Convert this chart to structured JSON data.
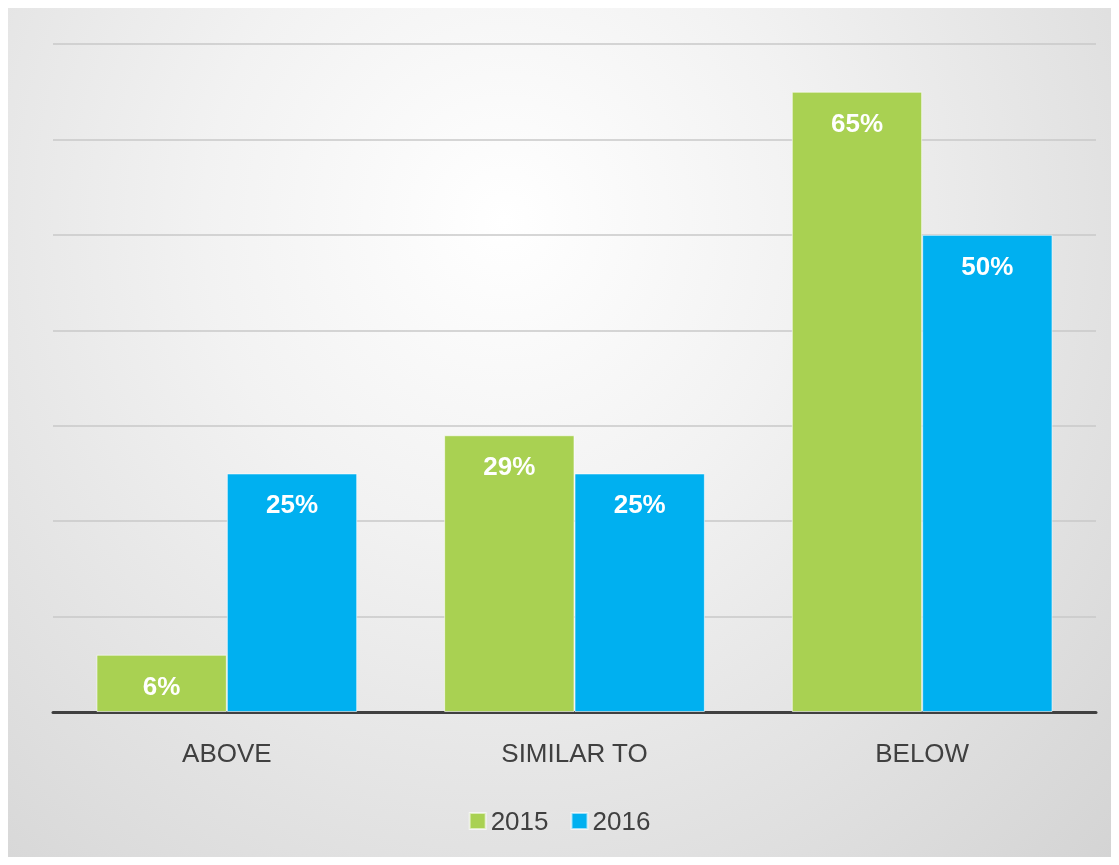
{
  "chart_data": {
    "type": "bar",
    "categories": [
      "ABOVE",
      "SIMILAR TO",
      "BELOW"
    ],
    "series": [
      {
        "name": "2015",
        "color": "#a9d152",
        "values": [
          6,
          29,
          65
        ],
        "value_labels": [
          "6%",
          "29%",
          "65%"
        ]
      },
      {
        "name": "2016",
        "color": "#00b0f0",
        "values": [
          25,
          25,
          50
        ],
        "value_labels": [
          "25%",
          "25%",
          "50%"
        ]
      }
    ],
    "tick_labels": "x",
    "grid": "y",
    "legend": "bottom"
  }
}
